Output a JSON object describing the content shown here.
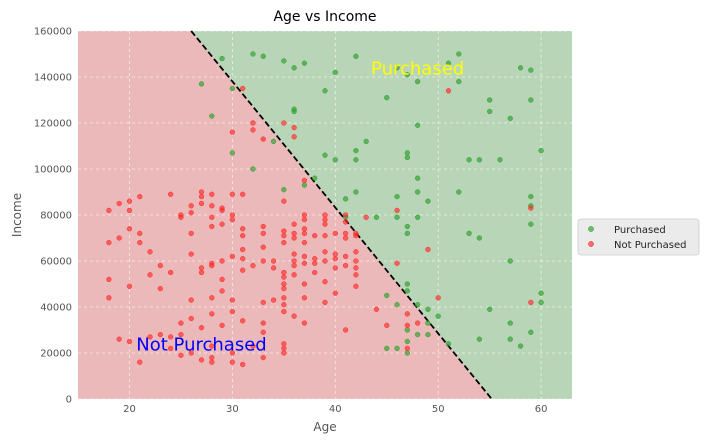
{
  "chart_data": {
    "type": "scatter",
    "title": "Age vs Income",
    "xlabel": "Age",
    "ylabel": "Income",
    "xlim": [
      15,
      63
    ],
    "ylim": [
      0,
      160000
    ],
    "x_ticks": [
      20,
      30,
      40,
      50,
      60
    ],
    "y_ticks": [
      0,
      20000,
      40000,
      60000,
      80000,
      100000,
      120000,
      140000,
      160000
    ],
    "grid": true,
    "legend_position": "right",
    "boundary": {
      "points": [
        [
          26,
          160000
        ],
        [
          55.2,
          0
        ]
      ],
      "color": "#000000",
      "style": "dashed"
    },
    "regions": [
      {
        "name": "Purchased",
        "label": "Purchased",
        "color": "#b9d5b8",
        "label_color": "#ffff00",
        "label_at": [
          48,
          141000
        ]
      },
      {
        "name": "Not Purchased",
        "label": "Not Purchased",
        "color": "#ebb9b9",
        "label_color": "#0000ff",
        "label_at": [
          27,
          21000
        ]
      }
    ],
    "series": [
      {
        "name": "Purchased",
        "color": "#2ca02c",
        "points": [
          [
            27,
            137000
          ],
          [
            28,
            123000
          ],
          [
            29,
            148000
          ],
          [
            30,
            135000
          ],
          [
            32,
            150000
          ],
          [
            33,
            149000
          ],
          [
            32,
            100000
          ],
          [
            35,
            147000
          ],
          [
            36,
            144000
          ],
          [
            37,
            146000
          ],
          [
            36,
            126000
          ],
          [
            36,
            125000
          ],
          [
            37,
            93000
          ],
          [
            39,
            134000
          ],
          [
            40,
            142000
          ],
          [
            42,
            149000
          ],
          [
            39,
            106000
          ],
          [
            40,
            104000
          ],
          [
            42,
            108000
          ],
          [
            42,
            104000
          ],
          [
            43,
            112000
          ],
          [
            45,
            131000
          ],
          [
            46,
            144000
          ],
          [
            48,
            138000
          ],
          [
            47,
            141000
          ],
          [
            48,
            119000
          ],
          [
            47,
            107000
          ],
          [
            47,
            105000
          ],
          [
            48,
            96000
          ],
          [
            49,
            86000
          ],
          [
            48,
            90000
          ],
          [
            48,
            79000
          ],
          [
            46,
            88000
          ],
          [
            46,
            79000
          ],
          [
            47,
            75000
          ],
          [
            47,
            72000
          ],
          [
            44,
            79000
          ],
          [
            51,
            146000
          ],
          [
            52,
            150000
          ],
          [
            52,
            138000
          ],
          [
            55,
            130000
          ],
          [
            55,
            125000
          ],
          [
            57,
            122000
          ],
          [
            58,
            144000
          ],
          [
            59,
            143000
          ],
          [
            59,
            130000
          ],
          [
            53,
            104000
          ],
          [
            54,
            104000
          ],
          [
            56,
            104000
          ],
          [
            52,
            90000
          ],
          [
            60,
            108000
          ],
          [
            59,
            88000
          ],
          [
            59,
            84000
          ],
          [
            59,
            76000
          ],
          [
            53,
            72000
          ],
          [
            54,
            70000
          ],
          [
            57,
            60000
          ],
          [
            60,
            46000
          ],
          [
            60,
            42000
          ],
          [
            55,
            39000
          ],
          [
            57,
            33000
          ],
          [
            59,
            29000
          ],
          [
            57,
            26000
          ],
          [
            58,
            23000
          ],
          [
            54,
            26000
          ],
          [
            51,
            24000
          ],
          [
            47,
            50000
          ],
          [
            47,
            47000
          ],
          [
            46,
            41000
          ],
          [
            45,
            45000
          ],
          [
            48,
            41000
          ],
          [
            49,
            39000
          ],
          [
            50,
            36000
          ],
          [
            49,
            33000
          ],
          [
            47,
            30000
          ],
          [
            48,
            28000
          ],
          [
            49,
            28000
          ],
          [
            45,
            22000
          ],
          [
            46,
            22000
          ],
          [
            47,
            20000
          ],
          [
            47,
            25000
          ],
          [
            35,
            91000
          ],
          [
            38,
            96000
          ],
          [
            41,
            79000
          ],
          [
            42,
            90000
          ],
          [
            41,
            87000
          ],
          [
            30,
            107000
          ],
          [
            34,
            112000
          ]
        ]
      },
      {
        "name": "Not Purchased",
        "color": "#ff2a2a",
        "points": [
          [
            18,
            82000
          ],
          [
            19,
            85000
          ],
          [
            19,
            70000
          ],
          [
            18,
            68000
          ],
          [
            18,
            52000
          ],
          [
            18,
            44000
          ],
          [
            20,
            86000
          ],
          [
            20,
            82000
          ],
          [
            21,
            88000
          ],
          [
            20,
            74000
          ],
          [
            21,
            72000
          ],
          [
            21,
            68000
          ],
          [
            22,
            64000
          ],
          [
            23,
            58000
          ],
          [
            22,
            54000
          ],
          [
            24,
            55000
          ],
          [
            20,
            49000
          ],
          [
            23,
            48000
          ],
          [
            19,
            26000
          ],
          [
            20,
            25000
          ],
          [
            21,
            16000
          ],
          [
            22,
            27000
          ],
          [
            23,
            28000
          ],
          [
            24,
            27000
          ],
          [
            25,
            33000
          ],
          [
            26,
            35000
          ],
          [
            26,
            43000
          ],
          [
            25,
            28000
          ],
          [
            24,
            22000
          ],
          [
            25,
            19000
          ],
          [
            26,
            20000
          ],
          [
            27,
            17000
          ],
          [
            24,
            89000
          ],
          [
            25,
            79000
          ],
          [
            25,
            80000
          ],
          [
            26,
            84000
          ],
          [
            26,
            81000
          ],
          [
            26,
            72000
          ],
          [
            26,
            63000
          ],
          [
            27,
            90000
          ],
          [
            27,
            88000
          ],
          [
            27,
            85000
          ],
          [
            28,
            89000
          ],
          [
            28,
            84000
          ],
          [
            28,
            79000
          ],
          [
            29,
            83000
          ],
          [
            29,
            82000
          ],
          [
            28,
            75000
          ],
          [
            29,
            76000
          ],
          [
            27,
            57000
          ],
          [
            27,
            55000
          ],
          [
            28,
            58000
          ],
          [
            28,
            59000
          ],
          [
            29,
            60000
          ],
          [
            29,
            52000
          ],
          [
            30,
            62000
          ],
          [
            30,
            89000
          ],
          [
            31,
            89000
          ],
          [
            30,
            80000
          ],
          [
            31,
            74000
          ],
          [
            31,
            71000
          ],
          [
            31,
            65000
          ],
          [
            31,
            61000
          ],
          [
            30,
            116000
          ],
          [
            31,
            135000
          ],
          [
            32,
            117000
          ],
          [
            32,
            120000
          ],
          [
            33,
            113000
          ],
          [
            30,
            78000
          ],
          [
            28,
            44000
          ],
          [
            29,
            47000
          ],
          [
            30,
            43000
          ],
          [
            30,
            38000
          ],
          [
            29,
            32000
          ],
          [
            27,
            31000
          ],
          [
            28,
            37000
          ],
          [
            31,
            34000
          ],
          [
            33,
            33000
          ],
          [
            33,
            42000
          ],
          [
            34,
            43000
          ],
          [
            35,
            44000
          ],
          [
            33,
            29000
          ],
          [
            32,
            23000
          ],
          [
            30,
            20000
          ],
          [
            30,
            16000
          ],
          [
            31,
            15000
          ],
          [
            33,
            18000
          ],
          [
            35,
            20000
          ],
          [
            35,
            22000
          ],
          [
            35,
            24000
          ],
          [
            28,
            23000
          ],
          [
            28,
            18000
          ],
          [
            28,
            16000
          ],
          [
            31,
            56000
          ],
          [
            32,
            58000
          ],
          [
            33,
            60000
          ],
          [
            33,
            75000
          ],
          [
            33,
            72000
          ],
          [
            33,
            66000
          ],
          [
            34,
            60000
          ],
          [
            34,
            57000
          ],
          [
            35,
            55000
          ],
          [
            35,
            53000
          ],
          [
            35,
            50000
          ],
          [
            35,
            48000
          ],
          [
            35,
            41000
          ],
          [
            35,
            38000
          ],
          [
            36,
            36000
          ],
          [
            35,
            73000
          ],
          [
            35,
            71000
          ],
          [
            35,
            68000
          ],
          [
            35,
            86000
          ],
          [
            36,
            76000
          ],
          [
            36,
            72000
          ],
          [
            36,
            70000
          ],
          [
            36,
            63000
          ],
          [
            36,
            60000
          ],
          [
            36,
            58000
          ],
          [
            36,
            54000
          ],
          [
            37,
            80000
          ],
          [
            37,
            78000
          ],
          [
            37,
            74000
          ],
          [
            37,
            72000
          ],
          [
            37,
            68000
          ],
          [
            37,
            62000
          ],
          [
            37,
            59000
          ],
          [
            37,
            50000
          ],
          [
            37,
            44000
          ],
          [
            37,
            33000
          ],
          [
            38,
            71000
          ],
          [
            38,
            61000
          ],
          [
            38,
            59000
          ],
          [
            38,
            55000
          ],
          [
            39,
            80000
          ],
          [
            39,
            78000
          ],
          [
            39,
            76000
          ],
          [
            39,
            71000
          ],
          [
            39,
            64000
          ],
          [
            39,
            60000
          ],
          [
            39,
            51000
          ],
          [
            39,
            42000
          ],
          [
            40,
            72000
          ],
          [
            40,
            63000
          ],
          [
            40,
            61000
          ],
          [
            40,
            57000
          ],
          [
            40,
            46000
          ],
          [
            41,
            80000
          ],
          [
            41,
            77000
          ],
          [
            41,
            72000
          ],
          [
            41,
            70000
          ],
          [
            41,
            62000
          ],
          [
            41,
            58000
          ],
          [
            41,
            30000
          ],
          [
            42,
            72000
          ],
          [
            42,
            71000
          ],
          [
            42,
            64000
          ],
          [
            42,
            60000
          ],
          [
            42,
            57000
          ],
          [
            42,
            54000
          ],
          [
            42,
            49000
          ],
          [
            43,
            79000
          ],
          [
            44,
            39000
          ],
          [
            45,
            32000
          ],
          [
            46,
            82000
          ],
          [
            46,
            59000
          ],
          [
            47,
            37000
          ],
          [
            47,
            32000
          ],
          [
            47,
            22000
          ],
          [
            48,
            33000
          ],
          [
            49,
            65000
          ],
          [
            50,
            44000
          ],
          [
            51,
            134000
          ],
          [
            59,
            83000
          ],
          [
            59,
            42000
          ],
          [
            36,
            118000
          ],
          [
            36,
            114000
          ],
          [
            35,
            120000
          ],
          [
            37,
            95000
          ]
        ]
      }
    ]
  }
}
